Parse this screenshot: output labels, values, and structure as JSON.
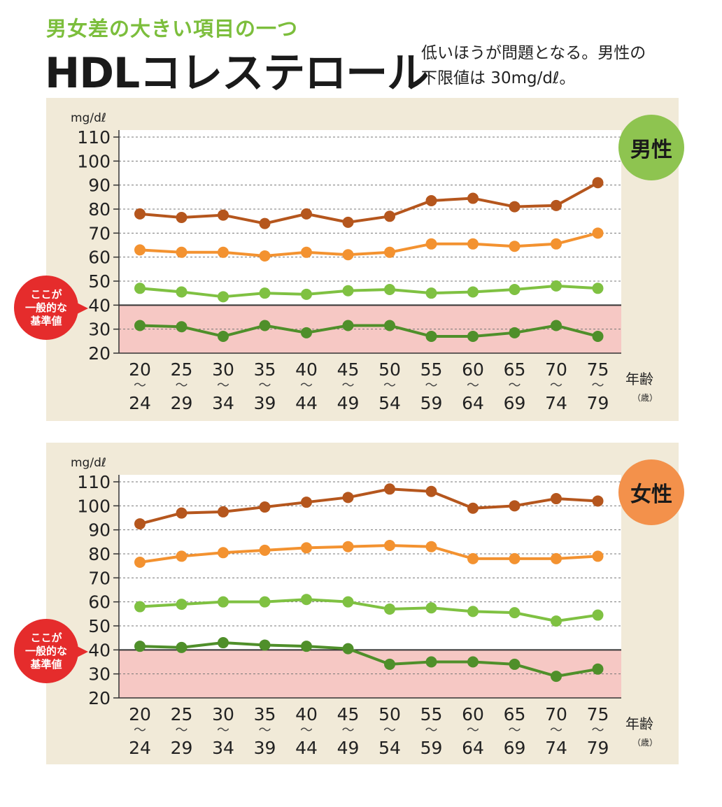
{
  "header": {
    "subtitle": "男女差の大きい項目の一つ",
    "title": "HDLコレステロール",
    "description_line1": "低いほうが問題となる。男性の",
    "description_line2": "下限値は 30mg/dℓ。"
  },
  "standard_label": [
    "ここが",
    "一般的な",
    "基準値"
  ],
  "colors": {
    "dark_orange": "#b5561d",
    "orange": "#f39230",
    "light_green": "#7fc142",
    "dark_green": "#4f8f2a",
    "band": "#f6c8c4",
    "panel": "#f1ead8"
  },
  "chart_data": [
    {
      "type": "line",
      "gender_label": "男性",
      "ylabel": "mg/dℓ",
      "xlabel": "年齢",
      "xunit": "（歳）",
      "ylim": [
        20,
        110
      ],
      "yticks": [
        20,
        30,
        40,
        50,
        60,
        70,
        80,
        90,
        100,
        110
      ],
      "categories": [
        [
          "20",
          "24"
        ],
        [
          "25",
          "29"
        ],
        [
          "30",
          "34"
        ],
        [
          "35",
          "39"
        ],
        [
          "40",
          "44"
        ],
        [
          "45",
          "49"
        ],
        [
          "50",
          "54"
        ],
        [
          "55",
          "59"
        ],
        [
          "60",
          "64"
        ],
        [
          "65",
          "69"
        ],
        [
          "70",
          "74"
        ],
        [
          "75",
          "79"
        ]
      ],
      "reference_line": 40,
      "grid": true,
      "series": [
        {
          "color": "dark_orange",
          "values": [
            78,
            76.5,
            77.5,
            74,
            78,
            74.5,
            77,
            83.5,
            84.5,
            81,
            81.5,
            91
          ]
        },
        {
          "color": "orange",
          "values": [
            63,
            62,
            62,
            60.5,
            62,
            61,
            62,
            65.5,
            65.5,
            64.5,
            65.5,
            70
          ]
        },
        {
          "color": "light_green",
          "values": [
            47,
            45.5,
            43.5,
            45,
            44.5,
            46,
            46.5,
            45,
            45.5,
            46.5,
            48,
            47
          ]
        },
        {
          "color": "dark_green",
          "values": [
            31.5,
            31,
            27,
            31.5,
            28.5,
            31.5,
            31.5,
            27,
            27,
            28.5,
            31.5,
            27
          ]
        }
      ]
    },
    {
      "type": "line",
      "gender_label": "女性",
      "ylabel": "mg/dℓ",
      "xlabel": "年齢",
      "xunit": "（歳）",
      "ylim": [
        20,
        110
      ],
      "yticks": [
        20,
        30,
        40,
        50,
        60,
        70,
        80,
        90,
        100,
        110
      ],
      "categories": [
        [
          "20",
          "24"
        ],
        [
          "25",
          "29"
        ],
        [
          "30",
          "34"
        ],
        [
          "35",
          "39"
        ],
        [
          "40",
          "44"
        ],
        [
          "45",
          "49"
        ],
        [
          "50",
          "54"
        ],
        [
          "55",
          "59"
        ],
        [
          "60",
          "64"
        ],
        [
          "65",
          "69"
        ],
        [
          "70",
          "74"
        ],
        [
          "75",
          "79"
        ]
      ],
      "reference_line": 40,
      "grid": true,
      "series": [
        {
          "color": "dark_orange",
          "values": [
            92.5,
            97,
            97.5,
            99.5,
            101.5,
            103.5,
            107,
            106,
            99,
            100,
            103,
            102
          ]
        },
        {
          "color": "orange",
          "values": [
            76.5,
            79,
            80.5,
            81.5,
            82.5,
            83,
            83.5,
            83,
            78,
            78,
            78,
            79
          ]
        },
        {
          "color": "light_green",
          "values": [
            58,
            59,
            60,
            60,
            61,
            60,
            57,
            57.5,
            56,
            55.5,
            52,
            54.5
          ]
        },
        {
          "color": "dark_green",
          "values": [
            41.5,
            41,
            43,
            42,
            41.5,
            40.5,
            34,
            35,
            35,
            34,
            29,
            32
          ]
        }
      ]
    }
  ]
}
